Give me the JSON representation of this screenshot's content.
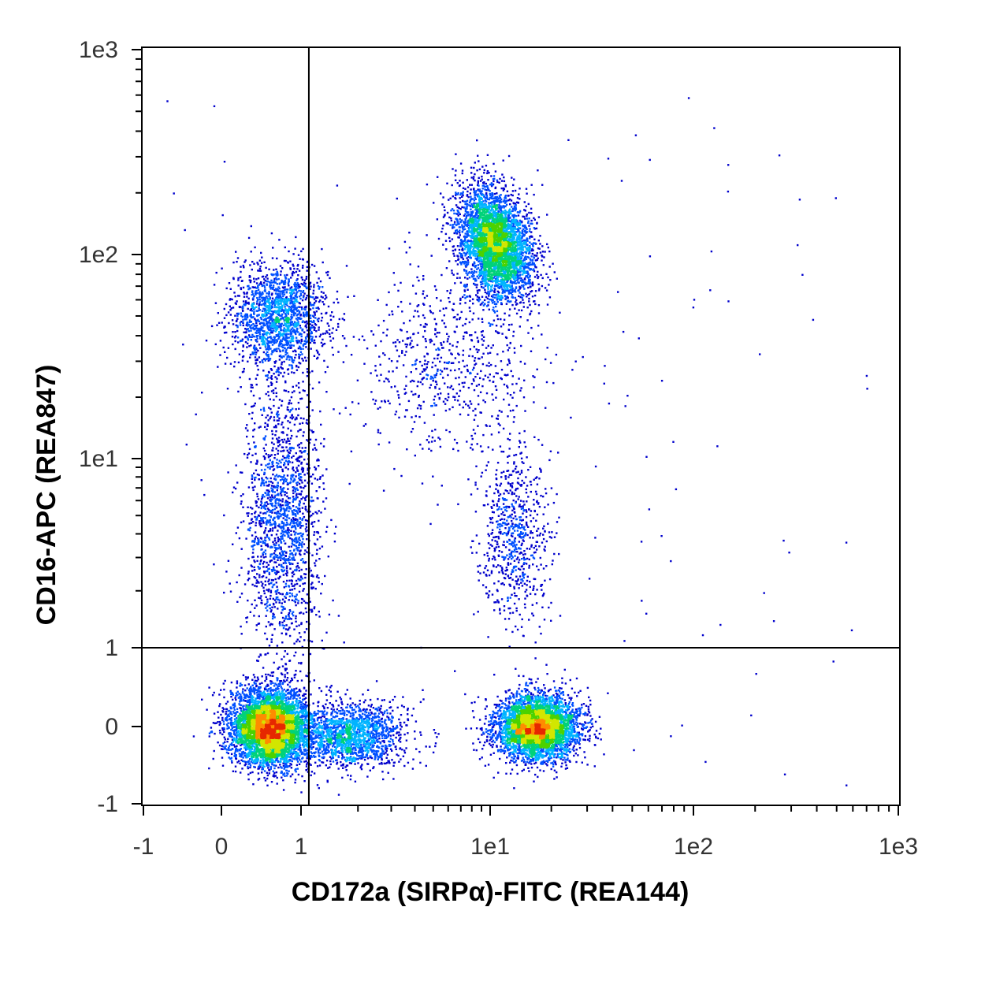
{
  "chart_data": {
    "type": "scatter",
    "subtype": "flow-cytometry-density-dot-plot",
    "xlabel": "CD172a (SIRPα)-FITC (REA144)",
    "ylabel": "CD16-APC (REA847)",
    "x_scale": "biexponential",
    "y_scale": "biexponential",
    "xlim": [
      -1,
      1000
    ],
    "ylim": [
      -1,
      1000
    ],
    "x_ticks": [
      {
        "value": -1,
        "label": "-1"
      },
      {
        "value": 0,
        "label": "0"
      },
      {
        "value": 1,
        "label": "1"
      },
      {
        "value": 10,
        "label": "1e1"
      },
      {
        "value": 100,
        "label": "1e2"
      },
      {
        "value": 1000,
        "label": "1e3"
      }
    ],
    "y_ticks": [
      {
        "value": -1,
        "label": "-1"
      },
      {
        "value": 0,
        "label": "0"
      },
      {
        "value": 1,
        "label": "1"
      },
      {
        "value": 10,
        "label": "1e1"
      },
      {
        "value": 100,
        "label": "1e2"
      },
      {
        "value": 1000,
        "label": "1e3"
      }
    ],
    "quadrant_gate": {
      "x": 1.1,
      "y": 1
    },
    "grid": false,
    "legend": "none",
    "colormap": [
      "#0000cc",
      "#0050ff",
      "#00b4ff",
      "#00d27a",
      "#4cd200",
      "#d2e600",
      "#ff8c00",
      "#e62800"
    ],
    "populations": [
      {
        "x": 0.6,
        "y": 0,
        "n": 5200
      },
      {
        "x": 1.8,
        "y": -0.1,
        "n": 1700
      },
      {
        "x": 17,
        "y": 0,
        "n": 4200
      },
      {
        "x": 10.5,
        "y": 115,
        "n": 4000
      },
      {
        "x": 0.7,
        "y": 50,
        "n": 1700
      },
      {
        "x": 0.75,
        "y": 5,
        "n": 1700
      },
      {
        "x": 13,
        "y": 4,
        "n": 700
      },
      {
        "x": 6,
        "y": 30,
        "n": 700
      }
    ]
  }
}
